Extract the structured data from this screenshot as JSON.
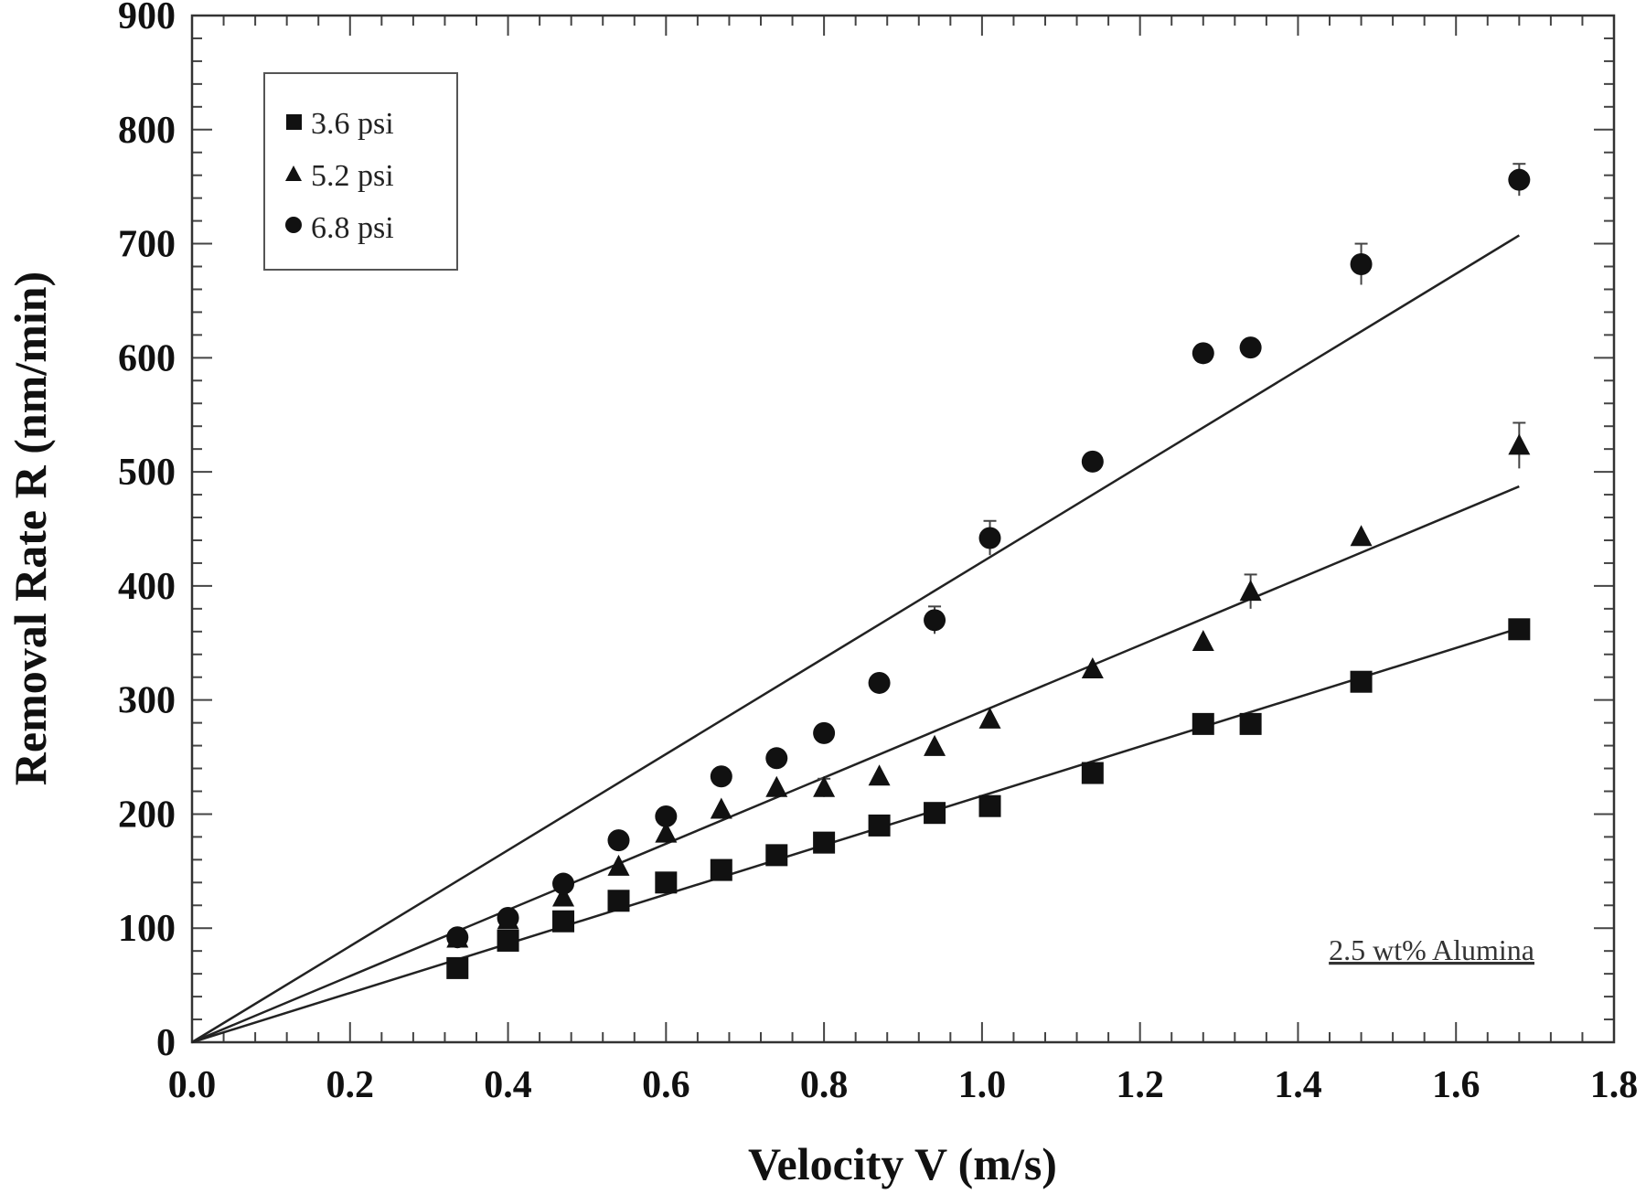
{
  "chart_data": {
    "type": "scatter",
    "title": "",
    "xlabel": "Velocity V (m/s)",
    "ylabel": "Removal Rate R (nm/min)",
    "xlim": [
      0,
      1.8
    ],
    "ylim": [
      0,
      900
    ],
    "xticks": [
      "0.0",
      "0.2",
      "0.4",
      "0.6",
      "0.8",
      "1.0",
      "1.2",
      "1.4",
      "1.6",
      "1.8"
    ],
    "yticks": [
      "0",
      "100",
      "200",
      "300",
      "400",
      "500",
      "600",
      "700",
      "800",
      "900"
    ],
    "grid": false,
    "legend_position": "top-left",
    "annotation": "2.5 wt% Alumina",
    "x": [
      0.336,
      0.4,
      0.47,
      0.54,
      0.6,
      0.67,
      0.74,
      0.8,
      0.87,
      0.94,
      1.01,
      1.14,
      1.28,
      1.34,
      1.48,
      1.68
    ],
    "series": [
      {
        "name": "3.6 psi",
        "marker": "square",
        "values": [
          65,
          89,
          106,
          124,
          140,
          151,
          164,
          175,
          190,
          201,
          207,
          236,
          279,
          279,
          316,
          362
        ],
        "error": [
          0,
          0,
          0,
          0,
          0,
          0,
          0,
          0,
          0,
          0,
          0,
          0,
          0,
          0,
          0,
          0
        ],
        "fit_slope": 216
      },
      {
        "name": "5.2 psi",
        "marker": "triangle",
        "values": [
          91,
          107,
          127,
          154,
          183,
          204,
          223,
          223,
          233,
          259,
          283,
          327,
          351,
          395,
          443,
          523
        ],
        "error": [
          0,
          0,
          0,
          0,
          0,
          0,
          0,
          8,
          0,
          0,
          0,
          0,
          0,
          15,
          0,
          20
        ],
        "fit_slope": 290
      },
      {
        "name": "6.8 psi",
        "marker": "circle",
        "values": [
          92,
          109,
          139,
          177,
          198,
          233,
          249,
          271,
          315,
          370,
          442,
          509,
          604,
          609,
          682,
          756
        ],
        "error": [
          0,
          0,
          0,
          0,
          0,
          0,
          0,
          0,
          0,
          12,
          15,
          0,
          0,
          0,
          18,
          14
        ],
        "fit_slope": 421
      }
    ],
    "fit_x_range": [
      0,
      1.68
    ]
  }
}
